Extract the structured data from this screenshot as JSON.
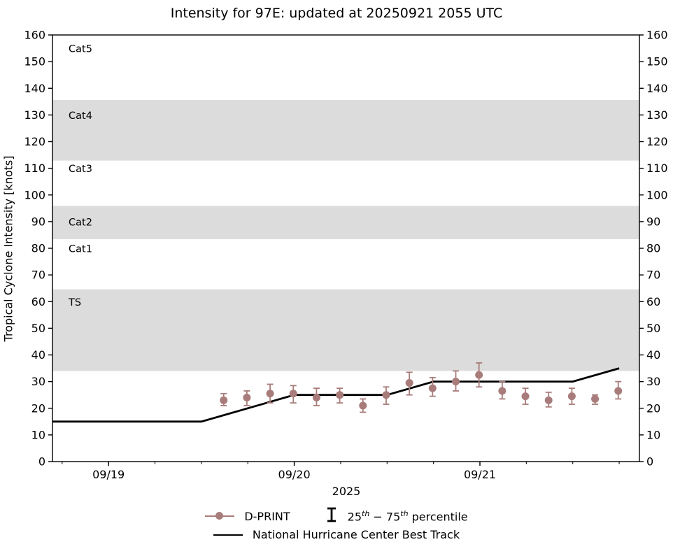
{
  "figure": {
    "title": "Intensity for 97E: updated at 20250921 2055 UTC"
  },
  "chart_data": {
    "type": "scatter+line",
    "title": "Intensity for 97E: updated at 20250921 2055 UTC",
    "xlabel": "2025",
    "ylabel": "Tropical Cyclone Intensity [knots]",
    "x_unit": "days since 2025-09-19 00:00 UTC",
    "xlim": [
      -0.302,
      2.859
    ],
    "ylim": [
      0,
      160
    ],
    "ytick_step": 10,
    "xticks": [
      {
        "label": "09/19",
        "t": 0
      },
      {
        "label": "09/20",
        "t": 1
      },
      {
        "label": "09/21",
        "t": 2
      }
    ],
    "minor_xtick_interval_days": 0.25,
    "grid": false,
    "band_color": "#dcdcdc",
    "category_bands": [
      {
        "name": "TS",
        "lo": 34,
        "hi": 64.6
      },
      {
        "name": "Cat2",
        "lo": 83.4,
        "hi": 95.9
      },
      {
        "name": "Cat4",
        "lo": 112.9,
        "hi": 135.6
      }
    ],
    "category_labels": [
      {
        "text": "Cat5",
        "v": 155
      },
      {
        "text": "Cat4",
        "v": 130
      },
      {
        "text": "Cat3",
        "v": 110
      },
      {
        "text": "Cat2",
        "v": 90
      },
      {
        "text": "Cat1",
        "v": 80
      },
      {
        "text": "TS",
        "v": 60
      }
    ],
    "series": [
      {
        "name": "National Hurricane Center Best Track",
        "type": "line",
        "color": "#000000",
        "points": [
          [
            -0.302,
            15
          ],
          [
            0.5,
            15
          ],
          [
            1.0,
            25
          ],
          [
            1.5,
            25
          ],
          [
            1.75,
            30
          ],
          [
            2.5,
            30
          ],
          [
            2.75,
            35
          ]
        ]
      },
      {
        "name": "D-PRINT",
        "type": "scatter-errorbar",
        "color": "#a87c7a",
        "errorbar_meaning": "25th-75th percentile",
        "points": [
          {
            "t": 0.62,
            "v": 23,
            "p25": 21,
            "p75": 25.5
          },
          {
            "t": 0.745,
            "v": 24,
            "p25": 21,
            "p75": 26.5
          },
          {
            "t": 0.87,
            "v": 25.5,
            "p25": 22,
            "p75": 29
          },
          {
            "t": 0.995,
            "v": 25.5,
            "p25": 22,
            "p75": 28.5
          },
          {
            "t": 1.12,
            "v": 24,
            "p25": 21,
            "p75": 27.5
          },
          {
            "t": 1.245,
            "v": 25,
            "p25": 22,
            "p75": 27.5
          },
          {
            "t": 1.37,
            "v": 21,
            "p25": 18.5,
            "p75": 23.5
          },
          {
            "t": 1.495,
            "v": 25,
            "p25": 21.5,
            "p75": 28
          },
          {
            "t": 1.62,
            "v": 29.5,
            "p25": 25,
            "p75": 33.5
          },
          {
            "t": 1.745,
            "v": 27.5,
            "p25": 24.5,
            "p75": 31.5
          },
          {
            "t": 1.87,
            "v": 30,
            "p25": 26.5,
            "p75": 34
          },
          {
            "t": 1.995,
            "v": 32.5,
            "p25": 28,
            "p75": 37
          },
          {
            "t": 2.12,
            "v": 26.5,
            "p25": 23.5,
            "p75": 30
          },
          {
            "t": 2.245,
            "v": 24.5,
            "p25": 21.5,
            "p75": 27.5
          },
          {
            "t": 2.37,
            "v": 23,
            "p25": 20.5,
            "p75": 26
          },
          {
            "t": 2.495,
            "v": 24.5,
            "p25": 21.5,
            "p75": 27.5
          },
          {
            "t": 2.62,
            "v": 23.5,
            "p25": 21.5,
            "p75": 25
          },
          {
            "t": 2.745,
            "v": 26.5,
            "p25": 23.5,
            "p75": 30
          }
        ]
      }
    ],
    "legend_position": "below-axes"
  },
  "legend": {
    "dprint_label": "D-PRINT",
    "percentile_label": {
      "n1": "25",
      "sup1": "th",
      "mid": " − 75",
      "sup2": "th",
      "rest": " percentile"
    },
    "besttrack_label": "National Hurricane Center Best Track"
  }
}
